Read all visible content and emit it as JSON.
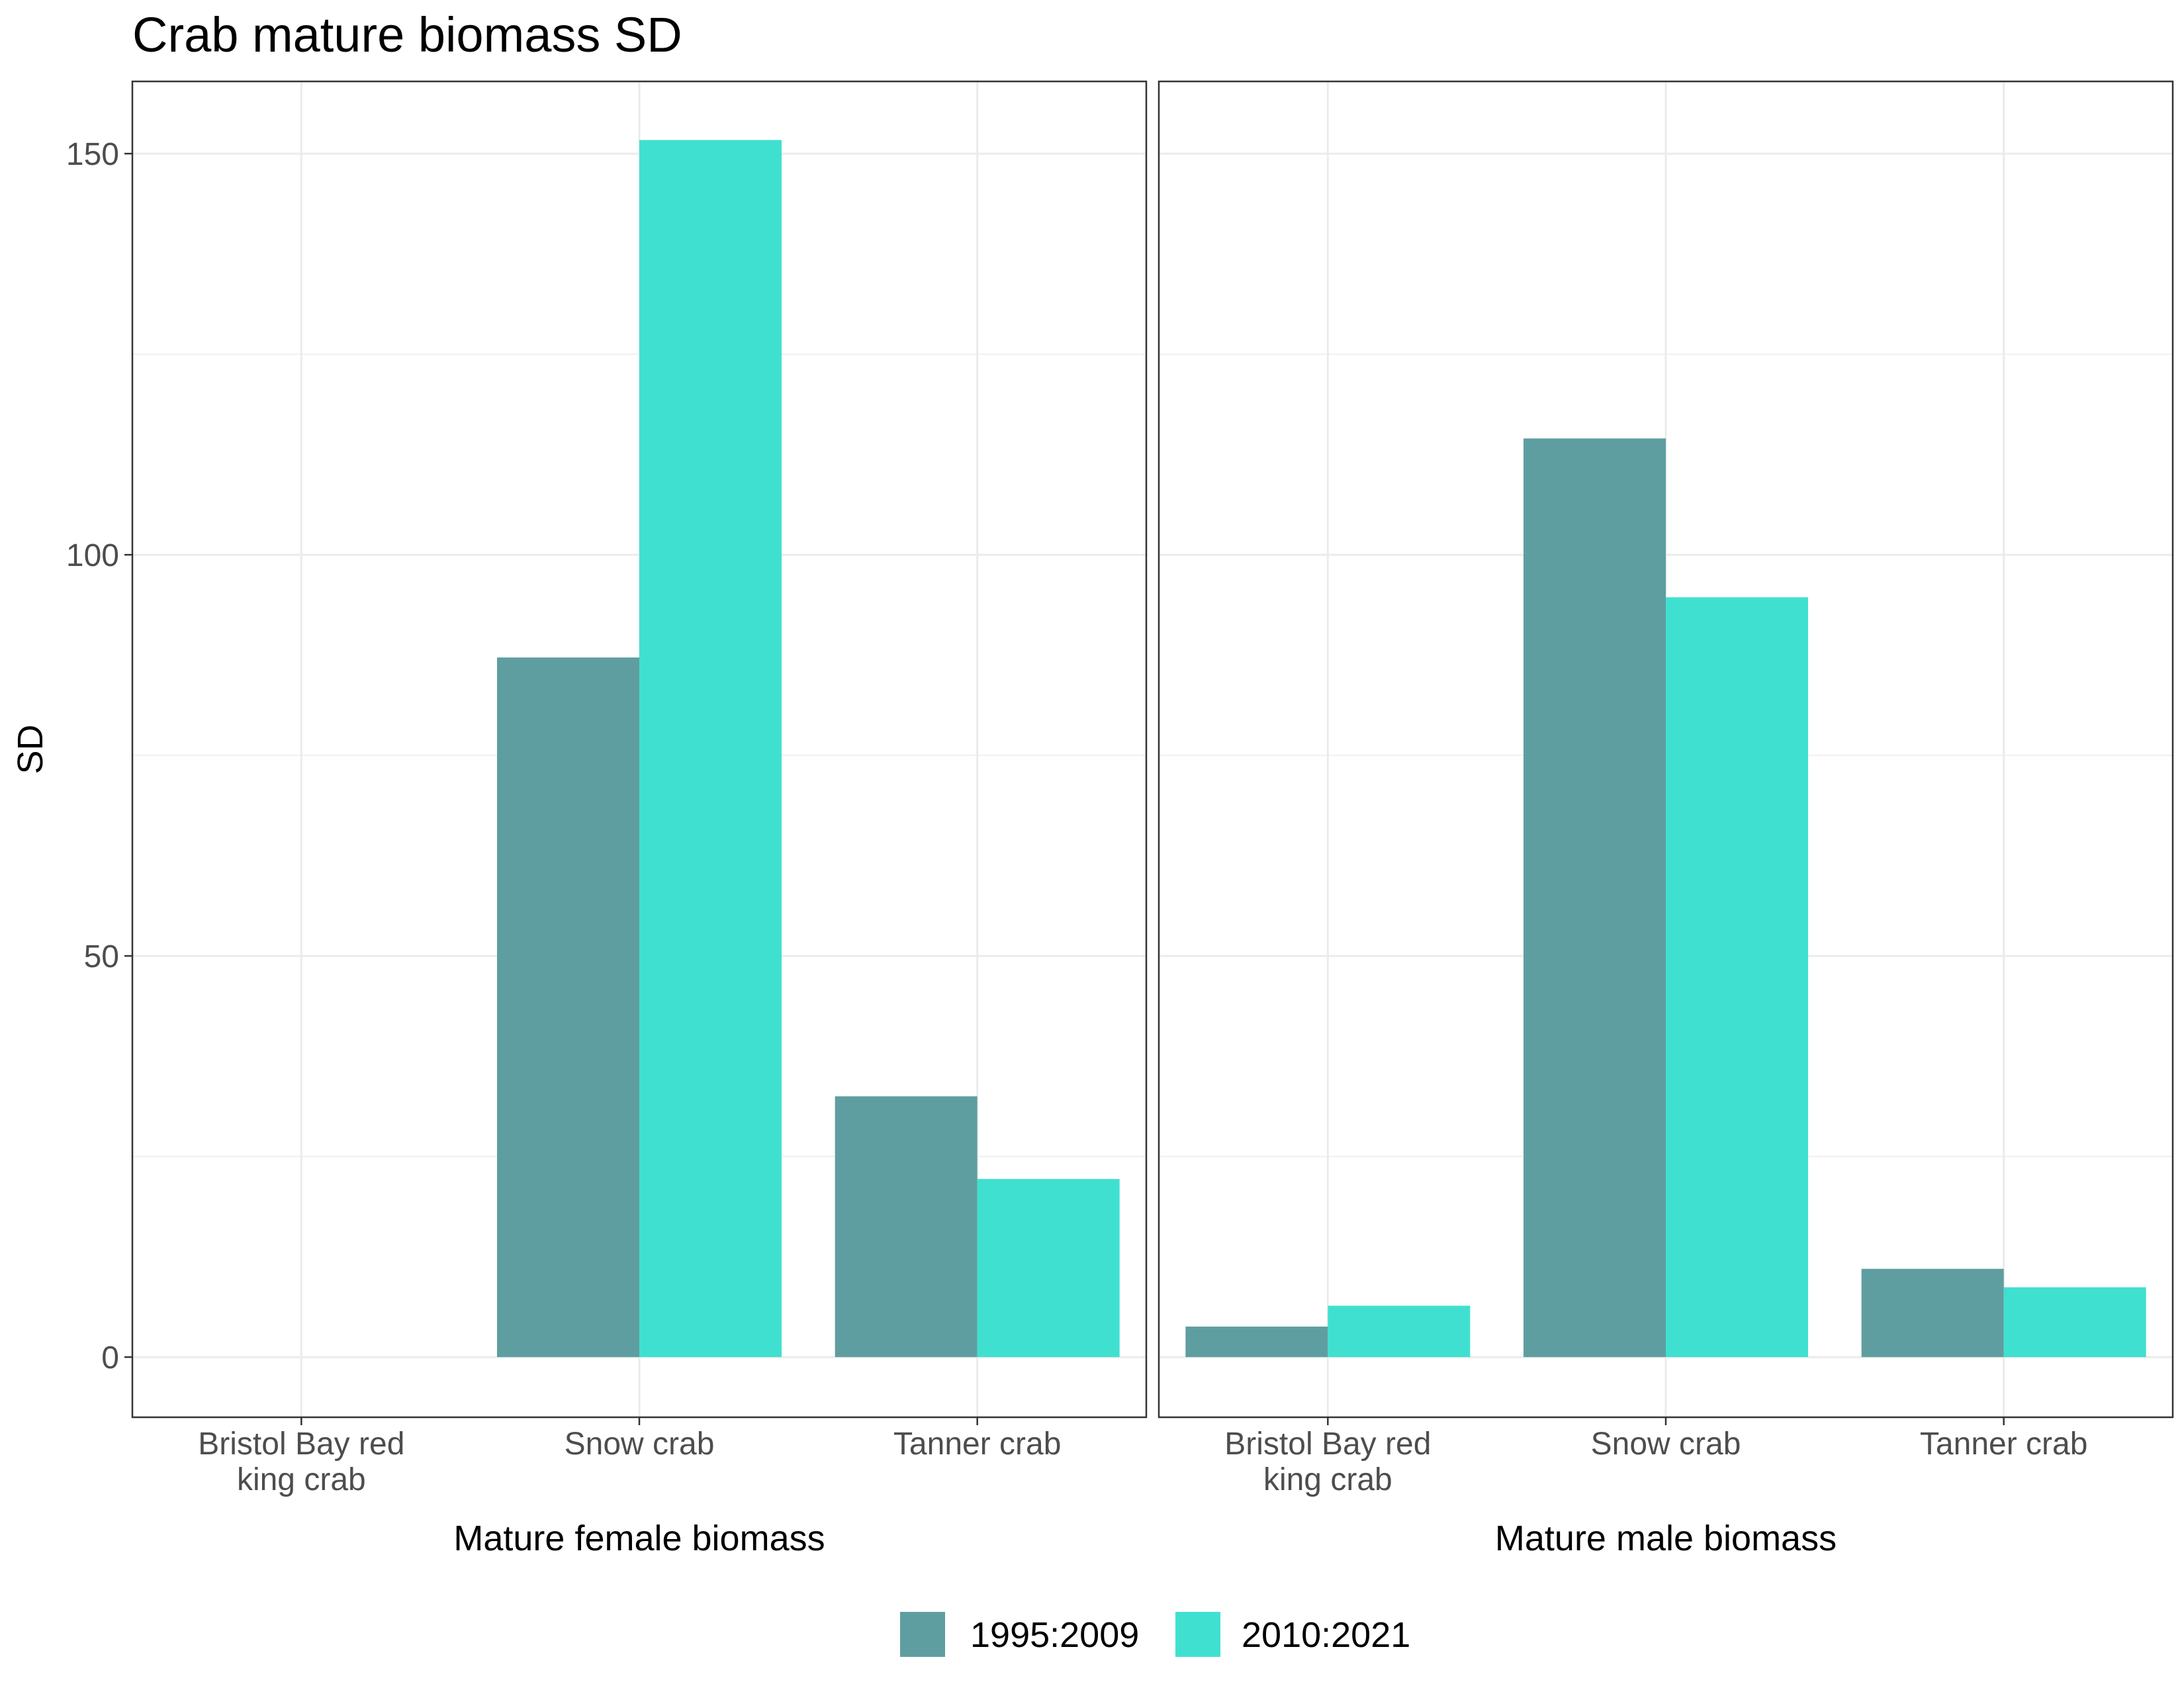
{
  "chart_data": {
    "type": "bar",
    "title": "Crab mature biomass SD",
    "ylabel": "SD",
    "ylim": [
      -7.5,
      159
    ],
    "yticks": [
      0,
      50,
      100,
      150
    ],
    "grid": true,
    "legend_position": "bottom",
    "series": [
      {
        "name": "1995:2009",
        "color": "#5f9ea0"
      },
      {
        "name": "2010:2021",
        "color": "#40e0d0"
      }
    ],
    "panels": [
      {
        "xlabel": "Mature female biomass",
        "categories": [
          [
            "Bristol Bay red",
            "king crab"
          ],
          [
            "Snow crab"
          ],
          [
            "Tanner crab"
          ]
        ],
        "values": [
          [
            0,
            87.2,
            32.5
          ],
          [
            0,
            151.7,
            22.2
          ]
        ]
      },
      {
        "xlabel": "Mature male biomass",
        "categories": [
          [
            "Bristol Bay red",
            "king crab"
          ],
          [
            "Snow crab"
          ],
          [
            "Tanner crab"
          ]
        ],
        "values": [
          [
            3.8,
            114.5,
            11.0
          ],
          [
            6.4,
            94.7,
            8.7
          ]
        ]
      }
    ]
  }
}
